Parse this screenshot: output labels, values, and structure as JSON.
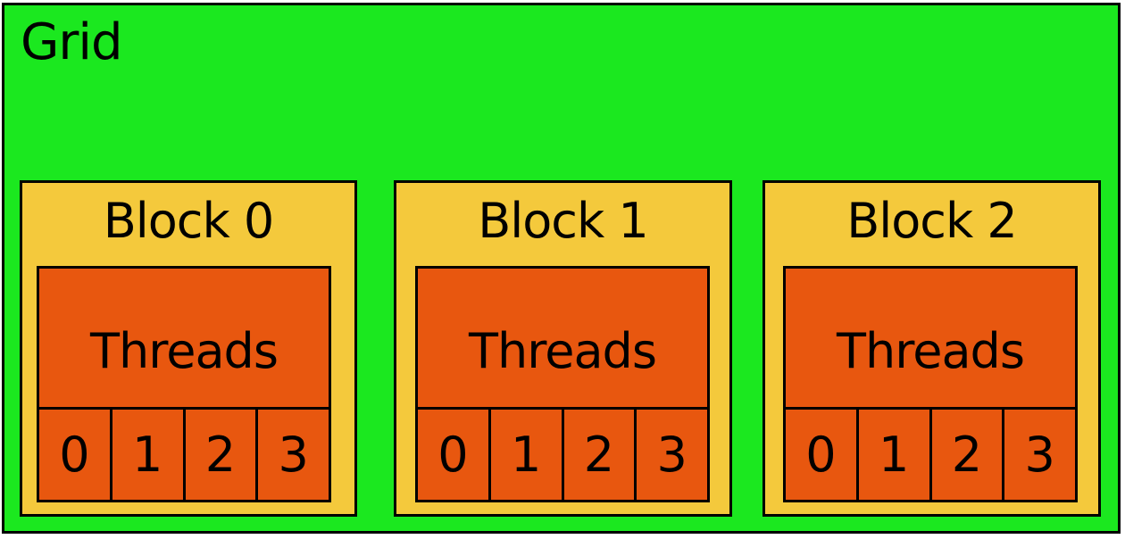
{
  "grid": {
    "title": "Grid",
    "color": "#1be81f"
  },
  "colors": {
    "block": "#f4c93c",
    "threads": "#e8570f",
    "border": "#000000"
  },
  "blocks": [
    {
      "title": "Block 0",
      "threads_label": "Threads",
      "threads": [
        "0",
        "1",
        "2",
        "3"
      ]
    },
    {
      "title": "Block 1",
      "threads_label": "Threads",
      "threads": [
        "0",
        "1",
        "2",
        "3"
      ]
    },
    {
      "title": "Block 2",
      "threads_label": "Threads",
      "threads": [
        "0",
        "1",
        "2",
        "3"
      ]
    }
  ]
}
